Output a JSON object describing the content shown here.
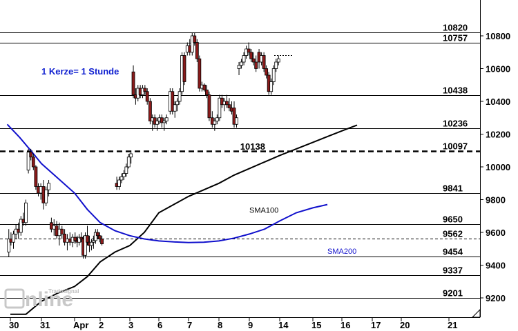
{
  "chart_data": {
    "type": "candlestick",
    "note": "1 Kerze= 1 Stunde",
    "y_axis": {
      "range": [
        9100,
        10900
      ],
      "ticks": [
        9200,
        9400,
        9600,
        9800,
        10000,
        10200,
        10400,
        10600,
        10800
      ]
    },
    "x_axis": {
      "ticks": [
        "30",
        "31",
        "Apr",
        "2",
        "3",
        "6",
        "7",
        "8",
        "9",
        "14",
        "15",
        "16",
        "17",
        "20",
        "21"
      ]
    },
    "levels": [
      {
        "value": 10820,
        "label": "10820",
        "style": "solid"
      },
      {
        "value": 10757,
        "label": "10757",
        "style": "solid"
      },
      {
        "value": 10438,
        "label": "10438",
        "style": "solid"
      },
      {
        "value": 10236,
        "label": "10236",
        "style": "solid"
      },
      {
        "value": 10097,
        "label": "10097",
        "style": "dashed-bold"
      },
      {
        "value": 9841,
        "label": "9841",
        "style": "solid"
      },
      {
        "value": 9650,
        "label": "9650",
        "style": "solid"
      },
      {
        "value": 9562,
        "label": "9562",
        "style": "dashed"
      },
      {
        "value": 9454,
        "label": "9454",
        "style": "solid"
      },
      {
        "value": 9337,
        "label": "9337",
        "style": "solid"
      },
      {
        "value": 9201,
        "label": "9201",
        "style": "solid"
      }
    ],
    "annotations": [
      {
        "text": "10138",
        "value": 10138,
        "day": 7.7
      },
      {
        "text": "10680",
        "value": 10680,
        "day": 9.6,
        "style": "dotted-segment",
        "hidden": true
      }
    ],
    "sma": [
      {
        "name": "SMA100",
        "color": "#000000",
        "label_day": 8.0,
        "label_value": 9720,
        "points": [
          [
            0,
            9100
          ],
          [
            0.5,
            9100
          ],
          [
            1,
            9180
          ],
          [
            1.5,
            9230
          ],
          [
            2,
            9270
          ],
          [
            2.5,
            9330
          ],
          [
            3,
            9420
          ],
          [
            3.5,
            9480
          ],
          [
            4,
            9520
          ],
          [
            4.5,
            9600
          ],
          [
            5,
            9720
          ],
          [
            5.5,
            9770
          ],
          [
            6,
            9820
          ],
          [
            6.5,
            9860
          ],
          [
            7,
            9900
          ],
          [
            7.5,
            9950
          ],
          [
            8,
            9990
          ],
          [
            8.5,
            10030
          ],
          [
            9,
            10070
          ],
          [
            9.5,
            10110
          ],
          [
            10,
            10150
          ],
          [
            10.5,
            10185
          ],
          [
            11,
            10220
          ],
          [
            11.5,
            10255
          ]
        ]
      },
      {
        "name": "SMA200",
        "color": "#1010cc",
        "label_day": 10.5,
        "label_value": 9470,
        "points": [
          [
            -0.1,
            10260
          ],
          [
            0.3,
            10180
          ],
          [
            0.7,
            10090
          ],
          [
            1,
            10020
          ],
          [
            1.5,
            9930
          ],
          [
            2,
            9840
          ],
          [
            2.5,
            9740
          ],
          [
            3,
            9660
          ],
          [
            3.5,
            9610
          ],
          [
            4,
            9580
          ],
          [
            4.5,
            9560
          ],
          [
            5,
            9548
          ],
          [
            5.5,
            9542
          ],
          [
            6,
            9538
          ],
          [
            6.5,
            9540
          ],
          [
            7,
            9548
          ],
          [
            7.5,
            9565
          ],
          [
            8,
            9590
          ],
          [
            8.5,
            9620
          ],
          [
            9,
            9670
          ],
          [
            9.5,
            9720
          ],
          [
            10,
            9750
          ],
          [
            10.5,
            9770
          ]
        ]
      }
    ],
    "candles": [
      [
        -0.05,
        9480,
        9620,
        9450,
        9560
      ],
      [
        0.02,
        9560,
        9600,
        9520,
        9540
      ],
      [
        0.1,
        9540,
        9610,
        9500,
        9590
      ],
      [
        0.18,
        9590,
        9650,
        9560,
        9620
      ],
      [
        0.26,
        9620,
        9660,
        9560,
        9600
      ],
      [
        0.34,
        9600,
        9700,
        9580,
        9680
      ],
      [
        0.42,
        9680,
        9720,
        9640,
        9660
      ],
      [
        0.5,
        9660,
        9800,
        9640,
        9780
      ],
      [
        0.58,
        9980,
        10110,
        9960,
        10090
      ],
      [
        0.66,
        10090,
        10110,
        10040,
        10060
      ],
      [
        0.74,
        10060,
        10080,
        9980,
        10000
      ],
      [
        0.82,
        10000,
        10010,
        9860,
        9880
      ],
      [
        0.9,
        9880,
        9900,
        9820,
        9840
      ],
      [
        0.98,
        9840,
        9900,
        9800,
        9880
      ],
      [
        1.06,
        9880,
        9920,
        9740,
        9780
      ],
      [
        1.14,
        9780,
        9880,
        9760,
        9860
      ],
      [
        1.22,
        9860,
        9920,
        9820,
        9900
      ],
      [
        1.3,
        9660,
        9690,
        9600,
        9620
      ],
      [
        1.38,
        9620,
        9680,
        9580,
        9640
      ],
      [
        1.46,
        9640,
        9670,
        9560,
        9580
      ],
      [
        1.54,
        9580,
        9660,
        9520,
        9620
      ],
      [
        1.62,
        9620,
        9640,
        9560,
        9590
      ],
      [
        1.7,
        9590,
        9620,
        9520,
        9540
      ],
      [
        1.78,
        9540,
        9590,
        9490,
        9560
      ],
      [
        1.86,
        9560,
        9600,
        9520,
        9540
      ],
      [
        1.94,
        9540,
        9590,
        9510,
        9570
      ],
      [
        2.02,
        9570,
        9600,
        9530,
        9550
      ],
      [
        2.1,
        9550,
        9580,
        9510,
        9540
      ],
      [
        2.18,
        9540,
        9590,
        9520,
        9570
      ],
      [
        2.26,
        9570,
        9600,
        9540,
        9560
      ],
      [
        2.34,
        9560,
        9580,
        9440,
        9460
      ],
      [
        2.42,
        9460,
        9600,
        9440,
        9580
      ],
      [
        2.5,
        9580,
        9640,
        9520,
        9540
      ],
      [
        2.58,
        9540,
        9580,
        9480,
        9520
      ],
      [
        2.66,
        9520,
        9560,
        9490,
        9540
      ],
      [
        2.74,
        9540,
        9580,
        9500,
        9550
      ],
      [
        2.82,
        9550,
        9620,
        9530,
        9600
      ],
      [
        2.9,
        9600,
        9620,
        9560,
        9580
      ],
      [
        2.98,
        9580,
        9600,
        9540,
        9560
      ],
      [
        3.06,
        9560,
        9580,
        9520,
        9530
      ],
      [
        3.56,
        9900,
        9940,
        9860,
        9880
      ],
      [
        3.64,
        9880,
        9940,
        9860,
        9920
      ],
      [
        3.72,
        9920,
        9960,
        9900,
        9940
      ],
      [
        3.8,
        9940,
        9980,
        9920,
        9960
      ],
      [
        3.88,
        9960,
        10020,
        9940,
        10000
      ],
      [
        3.96,
        10000,
        10080,
        9990,
        10060
      ],
      [
        4.04,
        10060,
        10100,
        10020,
        10080
      ],
      [
        4.12,
        10580,
        10620,
        10420,
        10440
      ],
      [
        4.2,
        10440,
        10480,
        10380,
        10420
      ],
      [
        4.28,
        10420,
        10500,
        10400,
        10480
      ],
      [
        4.36,
        10480,
        10500,
        10420,
        10440
      ],
      [
        4.44,
        10440,
        10500,
        10420,
        10480
      ],
      [
        4.52,
        10480,
        10500,
        10440,
        10460
      ],
      [
        4.6,
        10460,
        10480,
        10380,
        10400
      ],
      [
        4.7,
        10400,
        10420,
        10260,
        10280
      ],
      [
        4.78,
        10280,
        10320,
        10220,
        10300
      ],
      [
        4.86,
        10300,
        10320,
        10240,
        10260
      ],
      [
        4.94,
        10260,
        10300,
        10220,
        10280
      ],
      [
        5.02,
        10280,
        10320,
        10260,
        10300
      ],
      [
        5.1,
        10300,
        10320,
        10240,
        10270
      ],
      [
        5.18,
        10270,
        10300,
        10220,
        10280
      ],
      [
        5.26,
        10280,
        10320,
        10260,
        10300
      ],
      [
        5.38,
        10340,
        10480,
        10320,
        10460
      ],
      [
        5.46,
        10460,
        10480,
        10320,
        10340
      ],
      [
        5.54,
        10340,
        10400,
        10300,
        10380
      ],
      [
        5.62,
        10380,
        10420,
        10340,
        10400
      ],
      [
        5.7,
        10400,
        10480,
        10380,
        10460
      ],
      [
        5.78,
        10460,
        10700,
        10440,
        10680
      ],
      [
        5.86,
        10680,
        10700,
        10500,
        10520
      ],
      [
        5.96,
        10700,
        10760,
        10680,
        10740
      ],
      [
        6.04,
        10740,
        10780,
        10680,
        10700
      ],
      [
        6.12,
        10700,
        10820,
        10680,
        10800
      ],
      [
        6.2,
        10800,
        10820,
        10740,
        10760
      ],
      [
        6.28,
        10760,
        10780,
        10640,
        10660
      ],
      [
        6.36,
        10660,
        10680,
        10460,
        10480
      ],
      [
        6.44,
        10480,
        10520,
        10460,
        10500
      ],
      [
        6.52,
        10500,
        10510,
        10460,
        10470
      ],
      [
        6.6,
        10470,
        10500,
        10420,
        10440
      ],
      [
        6.68,
        10440,
        10460,
        10280,
        10300
      ],
      [
        6.78,
        10300,
        10340,
        10240,
        10260
      ],
      [
        6.86,
        10260,
        10300,
        10220,
        10280
      ],
      [
        6.94,
        10280,
        10320,
        10260,
        10300
      ],
      [
        7.02,
        10300,
        10440,
        10280,
        10420
      ],
      [
        7.1,
        10420,
        10440,
        10360,
        10380
      ],
      [
        7.18,
        10380,
        10420,
        10340,
        10400
      ],
      [
        7.26,
        10400,
        10440,
        10360,
        10380
      ],
      [
        7.34,
        10380,
        10420,
        10340,
        10360
      ],
      [
        7.42,
        10360,
        10400,
        10320,
        10340
      ],
      [
        7.5,
        10360,
        10400,
        10240,
        10260
      ],
      [
        7.58,
        10260,
        10320,
        10240,
        10300
      ],
      [
        7.66,
        10600,
        10640,
        10560,
        10620
      ],
      [
        7.74,
        10620,
        10660,
        10600,
        10640
      ],
      [
        7.82,
        10640,
        10700,
        10620,
        10680
      ],
      [
        7.9,
        10680,
        10740,
        10660,
        10720
      ],
      [
        7.98,
        10720,
        10760,
        10680,
        10700
      ],
      [
        8.06,
        10700,
        10720,
        10640,
        10660
      ],
      [
        8.14,
        10660,
        10700,
        10620,
        10640
      ],
      [
        8.22,
        10640,
        10680,
        10580,
        10600
      ],
      [
        8.32,
        10700,
        10720,
        10600,
        10640
      ],
      [
        8.4,
        10640,
        10700,
        10620,
        10680
      ],
      [
        8.48,
        10680,
        10700,
        10580,
        10600
      ],
      [
        8.56,
        10600,
        10620,
        10540,
        10560
      ],
      [
        8.64,
        10560,
        10580,
        10440,
        10460
      ],
      [
        8.72,
        10460,
        10540,
        10440,
        10520
      ],
      [
        8.8,
        10520,
        10620,
        10500,
        10600
      ],
      [
        8.88,
        10600,
        10660,
        10580,
        10640
      ],
      [
        8.96,
        10640,
        10680,
        10620,
        10660
      ]
    ]
  }
}
